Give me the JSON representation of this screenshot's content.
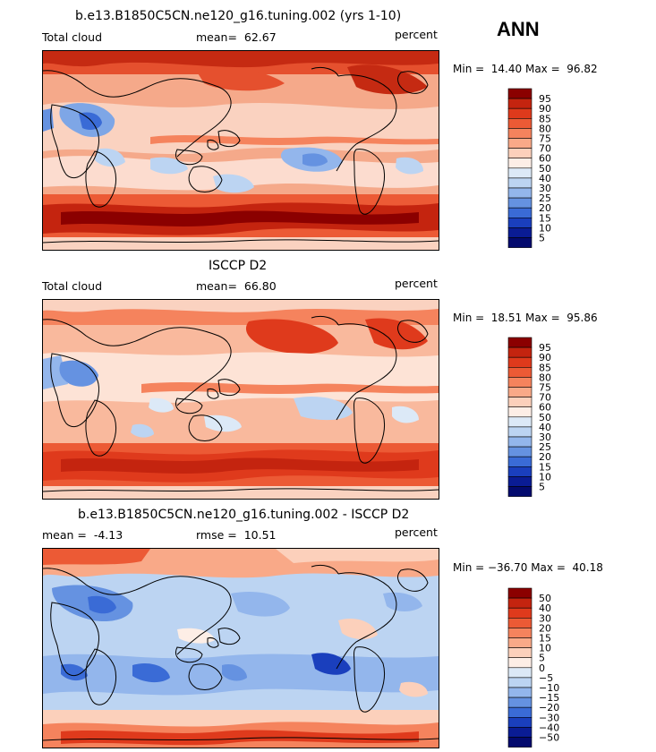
{
  "season": "ANN",
  "panels": [
    {
      "title": "b.e13.B1850C5CN.ne120_g16.tuning.002 (yrs 1-10)",
      "left_label": "Total cloud",
      "center_label": "mean=  62.67",
      "right_label": "percent",
      "minmax": "Min =  14.40 Max =  96.82"
    },
    {
      "title": "ISCCP D2",
      "left_label": "Total cloud",
      "center_label": "mean=  66.80",
      "right_label": "percent",
      "minmax": "Min =  18.51 Max =  95.86"
    },
    {
      "title": "b.e13.B1850C5CN.ne120_g16.tuning.002 - ISCCP D2",
      "left_label": "mean =  -4.13",
      "center_label": "rmse =  10.51",
      "right_label": "percent",
      "minmax": "Min = −36.70 Max =  40.18"
    }
  ],
  "chart_data": [
    {
      "type": "heatmap",
      "title": "b.e13.B1850C5CN.ne120_g16.tuning.002 (yrs 1-10)",
      "field": "Total cloud",
      "units": "percent",
      "mean": 62.67,
      "min": 14.4,
      "max": 96.82,
      "colorbar_levels": [
        "95",
        "90",
        "85",
        "80",
        "75",
        "70",
        "60",
        "50",
        "40",
        "30",
        "25",
        "20",
        "15",
        "10",
        "5"
      ],
      "colorbar_colors": [
        "#8b0000",
        "#c4240f",
        "#df3a1c",
        "#ec5a35",
        "#f5835d",
        "#f9a988",
        "#fcd0bb",
        "#fdeee6",
        "#dce9f7",
        "#bcd4f2",
        "#93b6ec",
        "#6592e1",
        "#3a6bd6",
        "#1a3fbd",
        "#0a1c94",
        "#030a6e"
      ]
    },
    {
      "type": "heatmap",
      "title": "ISCCP D2",
      "field": "Total cloud",
      "units": "percent",
      "mean": 66.8,
      "min": 18.51,
      "max": 95.86,
      "colorbar_levels": [
        "95",
        "90",
        "85",
        "80",
        "75",
        "70",
        "60",
        "50",
        "40",
        "30",
        "25",
        "20",
        "15",
        "10",
        "5"
      ],
      "colorbar_colors": [
        "#8b0000",
        "#c4240f",
        "#df3a1c",
        "#ec5a35",
        "#f5835d",
        "#f9a988",
        "#fcd0bb",
        "#fdeee6",
        "#dce9f7",
        "#bcd4f2",
        "#93b6ec",
        "#6592e1",
        "#3a6bd6",
        "#1a3fbd",
        "#0a1c94",
        "#030a6e"
      ]
    },
    {
      "type": "heatmap",
      "title": "b.e13.B1850C5CN.ne120_g16.tuning.002 - ISCCP D2",
      "units": "percent",
      "mean": -4.13,
      "rmse": 10.51,
      "min": -36.7,
      "max": 40.18,
      "colorbar_levels": [
        "50",
        "40",
        "30",
        "20",
        "15",
        "10",
        "5",
        "0",
        "−5",
        "−10",
        "−15",
        "−20",
        "−30",
        "−40",
        "−50"
      ],
      "colorbar_colors": [
        "#8b0000",
        "#c4240f",
        "#df3a1c",
        "#ec5a35",
        "#f5835d",
        "#f9a988",
        "#fcd0bb",
        "#fdeee6",
        "#dce9f7",
        "#bcd4f2",
        "#93b6ec",
        "#6592e1",
        "#3a6bd6",
        "#1a3fbd",
        "#0a1c94",
        "#030a6e"
      ]
    }
  ]
}
